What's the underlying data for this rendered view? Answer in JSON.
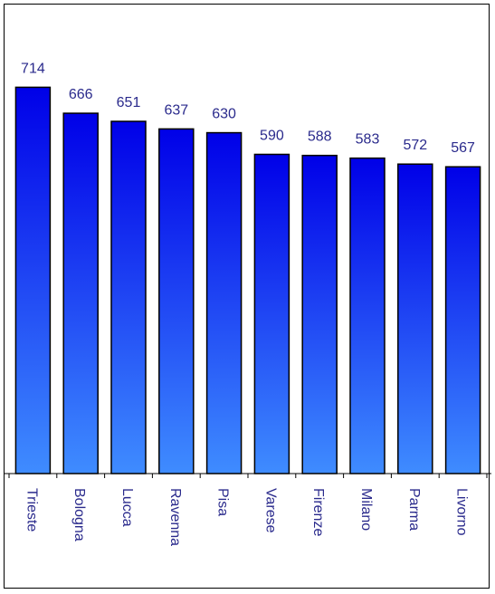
{
  "colors": {
    "bar_top": "#0000e8",
    "bar_bottom": "#3f8cff",
    "label": "#2a2a8c",
    "axis": "#000000"
  },
  "chart_data": {
    "type": "bar",
    "title": "",
    "xlabel": "",
    "ylabel": "",
    "categories": [
      "Trieste",
      "Bologna",
      "Lucca",
      "Ravenna",
      "Pisa",
      "Varese",
      "Firenze",
      "Milano",
      "Parma",
      "Livorno"
    ],
    "values": [
      714,
      666,
      651,
      637,
      630,
      590,
      588,
      583,
      572,
      567
    ],
    "data_labels": [
      "714",
      "666",
      "651",
      "637",
      "630",
      "590",
      "588",
      "583",
      "572",
      "567"
    ],
    "ylim": [
      0,
      800
    ],
    "grid": false,
    "legend": "none"
  }
}
